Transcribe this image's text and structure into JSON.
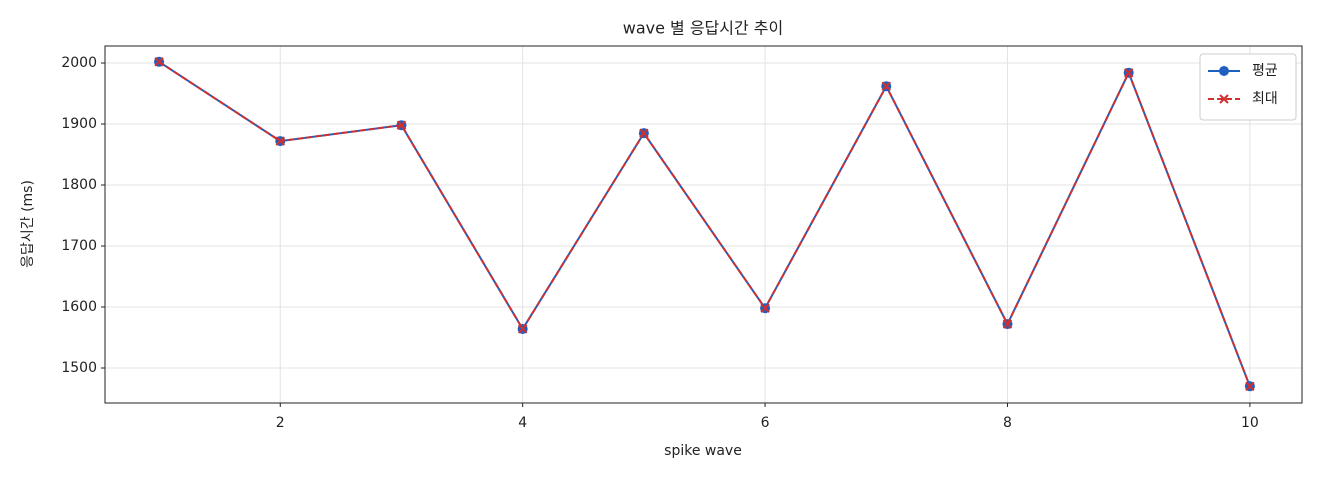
{
  "chart_data": {
    "type": "line",
    "title": "wave 별 응답시간 추이",
    "x_label": "spike wave",
    "y_label": "응답시간 (ms)",
    "x": [
      1,
      2,
      3,
      4,
      5,
      6,
      7,
      8,
      9,
      10
    ],
    "series": [
      {
        "name": "평균",
        "color": "#1f5fbf",
        "marker": "o",
        "dash": false,
        "values": [
          2002,
          1872,
          1898,
          1564,
          1885,
          1598,
          1962,
          1572,
          1984,
          1470
        ]
      },
      {
        "name": "최대",
        "color": "#d03030",
        "marker": "x",
        "dash": true,
        "values": [
          2002,
          1872,
          1898,
          1564,
          1885,
          1598,
          1962,
          1572,
          1984,
          1470
        ]
      }
    ],
    "xlim": [
      0.554,
      10.43
    ],
    "ylim": [
      1442.6,
      2027.9
    ],
    "xticks": [
      2,
      4,
      6,
      8,
      10
    ],
    "yticks": [
      1500,
      1600,
      1700,
      1800,
      1900,
      2000
    ],
    "grid": true,
    "legend": "upper right"
  }
}
